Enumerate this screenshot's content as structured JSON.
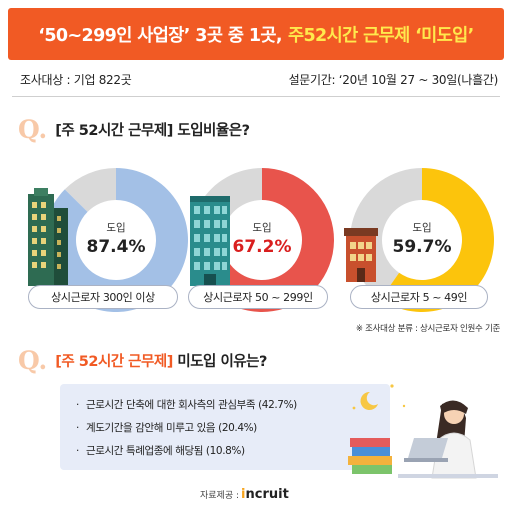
{
  "banner": {
    "title_part1": "‘50~299인 사업장’ 3곳 중 1곳,",
    "title_part2": "주52시간 근무제 ‘미도입’"
  },
  "survey": {
    "subject": "조사대상 :  기업 822곳",
    "period": "설문기간: ‘20년 10월 27 ~ 30일(나흘간)"
  },
  "q1": {
    "mark": "Q.",
    "text": "[주 52시간 근무제] 도입비율은?"
  },
  "q2": {
    "mark": "Q.",
    "text_highlight": "[주 52시간 근무제]",
    "text_rest": " 미도입 이유는?"
  },
  "chart_data": {
    "type": "pie",
    "center_label": "도입",
    "categories": [
      "상시근로자 300인 이상",
      "상시근로자 50 ~ 299인",
      "상시근로자 5 ~ 49인"
    ],
    "values": [
      87.4,
      67.2,
      59.7
    ],
    "value_labels": [
      "87.4%",
      "67.2%",
      "59.7%"
    ],
    "colors": [
      "#a3c0e6",
      "#e8544c",
      "#fcc40c"
    ],
    "remainder_color": "#d9d9d9",
    "value_text_colors": [
      "#222222",
      "#d91e1e",
      "#222222"
    ],
    "footnote": "※ 조사대상 분류 : 상시근로자 인원수 기준"
  },
  "reasons": [
    "근로시간 단축에 대한 회사측의 관심부족 (42.7%)",
    "계도기간을 감안해 미루고 있음 (20.4%)",
    "근로시간 특례업종에 해당됨 (10.8%)"
  ],
  "reason_bullet": "·",
  "source": {
    "label": "자료제공 :",
    "logo": "Incruit",
    "logo_mark": "i"
  },
  "icons": {
    "building_icons": [
      "building-tall-green-icon",
      "building-glass-teal-icon",
      "building-brick-small-icon"
    ],
    "illustration": "woman-laptop-books-moon-icon"
  }
}
